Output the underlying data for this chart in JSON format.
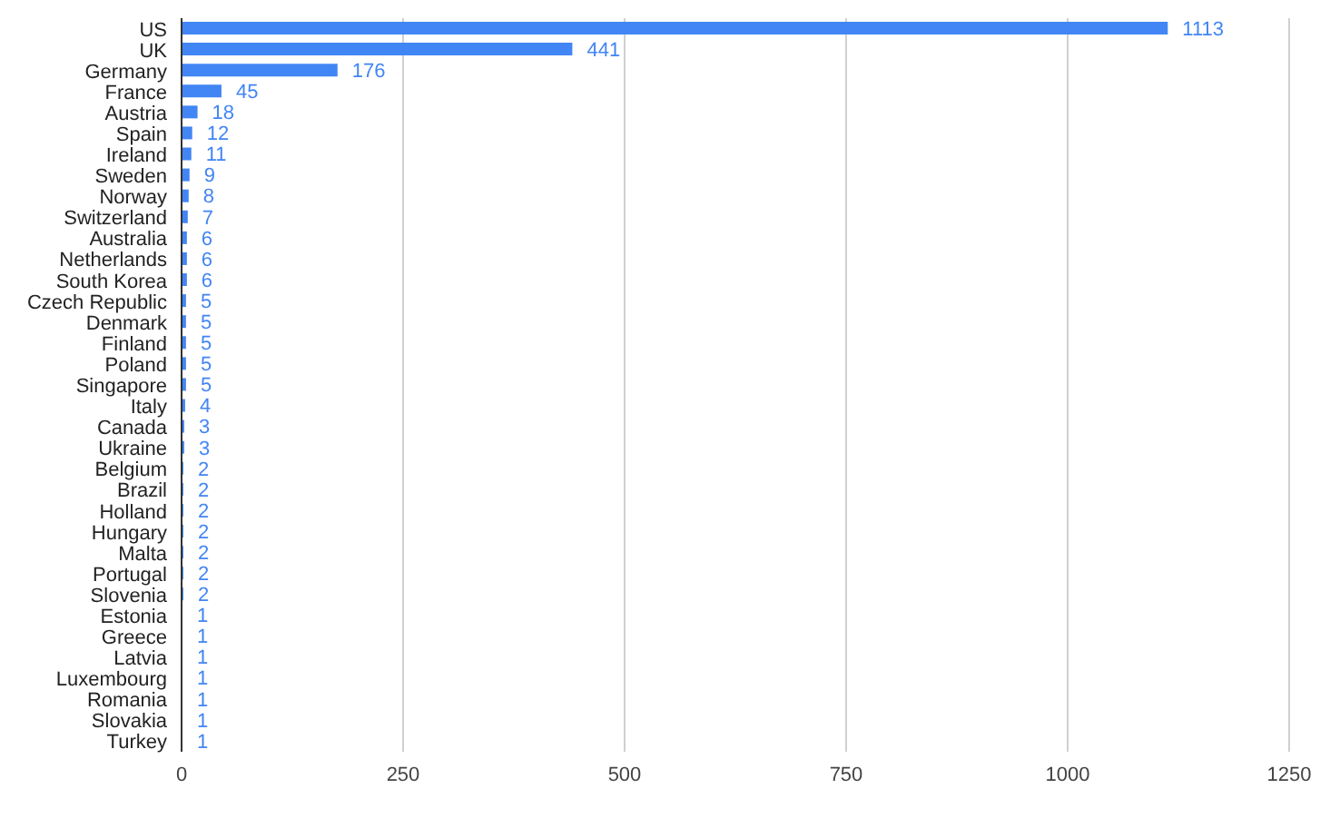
{
  "chart_data": {
    "type": "bar",
    "orientation": "horizontal",
    "categories": [
      "US",
      "UK",
      "Germany",
      "France",
      "Austria",
      "Spain",
      "Ireland",
      "Sweden",
      "Norway",
      "Switzerland",
      "Australia",
      "Netherlands",
      "South Korea",
      "Czech Republic",
      "Denmark",
      "Finland",
      "Poland",
      "Singapore",
      "Italy",
      "Canada",
      "Ukraine",
      "Belgium",
      "Brazil",
      "Holland",
      "Hungary",
      "Malta",
      "Portugal",
      "Slovenia",
      "Estonia",
      "Greece",
      "Latvia",
      "Luxembourg",
      "Romania",
      "Slovakia",
      "Turkey"
    ],
    "values": [
      1113,
      441,
      176,
      45,
      18,
      12,
      11,
      9,
      8,
      7,
      6,
      6,
      6,
      5,
      5,
      5,
      5,
      5,
      4,
      3,
      3,
      2,
      2,
      2,
      2,
      2,
      2,
      2,
      1,
      1,
      1,
      1,
      1,
      1,
      1
    ],
    "color": "#4285f4",
    "xlim": [
      0,
      1250
    ],
    "xticks": [
      0,
      250,
      500,
      750,
      1000,
      1250
    ],
    "grid": "x",
    "data_labels": true
  }
}
